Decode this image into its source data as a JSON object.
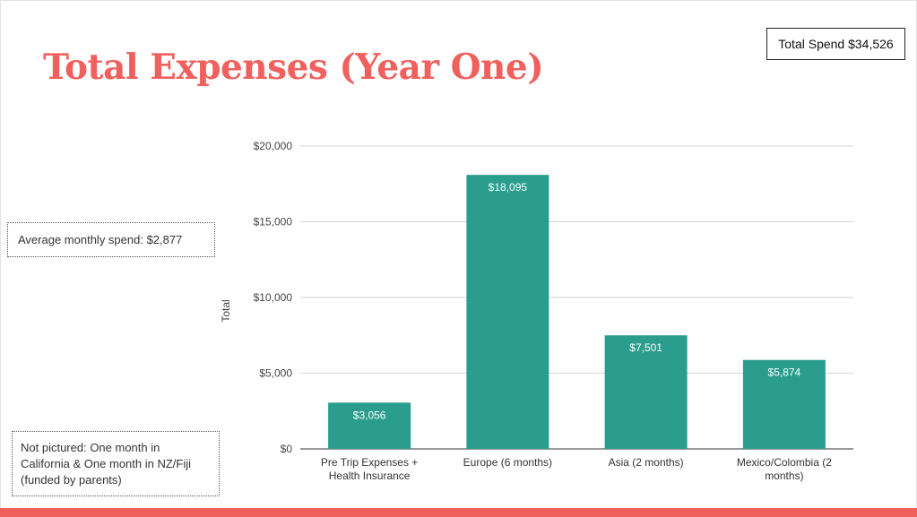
{
  "slide": {
    "title": "Total Expenses (Year One)",
    "total_spend": "Total Spend $34,526",
    "avg_note": "Average monthly spend: $2,877",
    "not_pictured_note": "Not pictured: One month in California & One month in NZ/Fiji (funded by parents)",
    "accent_color": "#f0605d"
  },
  "chart_data": {
    "type": "bar",
    "categories": [
      [
        "Pre Trip Expenses +",
        "Health Insurance"
      ],
      [
        "Europe (6 months)"
      ],
      [
        "Asia (2 months)"
      ],
      [
        "Mexico/Colombia (2",
        "months)"
      ]
    ],
    "values": [
      3056,
      18095,
      7501,
      5874
    ],
    "data_labels": [
      "$3,056",
      "$18,095",
      "$7,501",
      "$5,874"
    ],
    "title": "",
    "xlabel": "",
    "ylabel": "Total",
    "ylim": [
      0,
      20000
    ],
    "yticks": [
      0,
      5000,
      10000,
      15000,
      20000
    ],
    "ytick_labels": [
      "$0",
      "$5,000",
      "$10,000",
      "$15,000",
      "$20,000"
    ],
    "grid": true,
    "bar_color": "#2a9d8f"
  }
}
